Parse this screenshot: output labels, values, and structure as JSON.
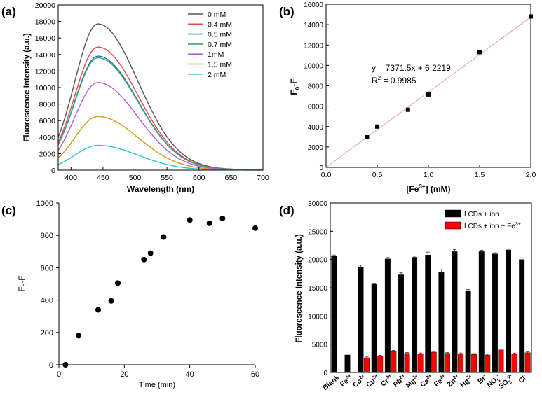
{
  "chart_data": [
    {
      "panel": "(a)",
      "type": "line",
      "xlabel": "Wavelength (nm)",
      "ylabel": "Fluorescence Intensity (a.u.)",
      "xlim": [
        380,
        700
      ],
      "ylim": [
        0,
        20000
      ],
      "xticks": [
        400,
        450,
        500,
        550,
        600,
        650,
        700
      ],
      "yticks": [
        0,
        2000,
        4000,
        6000,
        8000,
        10000,
        12000,
        14000,
        16000,
        18000,
        20000
      ],
      "legend_position": "top-right",
      "series": [
        {
          "name": "0 mM",
          "color": "#555555",
          "peak": 17700
        },
        {
          "name": "0.4 mM",
          "color": "#e8484a",
          "peak": 14900
        },
        {
          "name": "0.5 mM",
          "color": "#2f6fb8",
          "peak": 13800
        },
        {
          "name": "0.7 mM",
          "color": "#3aa66a",
          "peak": 13600
        },
        {
          "name": "1mM",
          "color": "#b15ee0",
          "peak": 10600
        },
        {
          "name": "1.5 mM",
          "color": "#d19a1a",
          "peak": 6500
        },
        {
          "name": "2 mM",
          "color": "#29c6cf",
          "peak": 3000
        }
      ],
      "peak_wavelength": 442
    },
    {
      "panel": "(b)",
      "type": "scatter",
      "xlabel": "[Fe3+] (mM)",
      "xlabel_base": "[Fe",
      "xlabel_sup": "3+",
      "xlabel_tail": "] (mM)",
      "ylabel": "F0-F",
      "ylabel_main": "F",
      "ylabel_sub": "0",
      "ylabel_tail": "-F",
      "xlim": [
        0,
        2.0
      ],
      "ylim": [
        0,
        16000
      ],
      "xticks": [
        "0.0",
        "0.5",
        "1.0",
        "1.5",
        "2.0"
      ],
      "yticks": [
        0,
        2000,
        4000,
        6000,
        8000,
        10000,
        12000,
        14000,
        16000
      ],
      "x": [
        0.4,
        0.5,
        0.8,
        1.0,
        1.5,
        2.0
      ],
      "y": [
        2950,
        4000,
        5650,
        7150,
        11300,
        14800
      ],
      "fit": {
        "slope": 7371.5,
        "intercept": 6.2219,
        "color": "#e8a09a"
      },
      "equation": "y = 7371.5x + 6.2219",
      "r2_label": "R",
      "r2_sup": "2",
      "r2_value": " = 0.9985"
    },
    {
      "panel": "(c)",
      "type": "scatter",
      "xlabel": "Time (min)",
      "ylabel": "F0-F",
      "ylabel_main": "F",
      "ylabel_sub": "0",
      "ylabel_tail": "-F",
      "xlim": [
        0,
        60
      ],
      "ylim": [
        0,
        1000
      ],
      "xticks": [
        0,
        20,
        40,
        60
      ],
      "yticks": [
        0,
        200,
        400,
        600,
        800,
        1000
      ],
      "x": [
        2,
        6,
        12,
        16,
        18,
        26,
        28,
        32,
        40,
        46,
        50,
        60
      ],
      "y": [
        0,
        180,
        340,
        395,
        505,
        650,
        690,
        790,
        895,
        875,
        905,
        845
      ]
    },
    {
      "panel": "(d)",
      "type": "bar",
      "ylabel": "Fluorescence Intensity (a.u.)",
      "ylim": [
        0,
        30000
      ],
      "yticks": [
        0,
        5000,
        10000,
        15000,
        20000,
        25000,
        30000
      ],
      "legend_position": "top-right",
      "categories": [
        {
          "base": "Blank",
          "sup": "",
          "sub": ""
        },
        {
          "base": "Fe",
          "sup": "3+",
          "sub": ""
        },
        {
          "base": "Co",
          "sup": "2+",
          "sub": ""
        },
        {
          "base": "Cu",
          "sup": "2+",
          "sub": ""
        },
        {
          "base": "Cr",
          "sup": "3+",
          "sub": ""
        },
        {
          "base": "Pb",
          "sup": "2+",
          "sub": ""
        },
        {
          "base": "Mg",
          "sup": "2+",
          "sub": ""
        },
        {
          "base": "Ca",
          "sup": "2+",
          "sub": ""
        },
        {
          "base": "Fe",
          "sup": "2+",
          "sub": ""
        },
        {
          "base": "Zn",
          "sup": "2+",
          "sub": ""
        },
        {
          "base": "Hg",
          "sup": "2+",
          "sub": ""
        },
        {
          "base": "Br",
          "sup": "-",
          "sub": ""
        },
        {
          "base": "NO",
          "sup": "-",
          "sub": "3"
        },
        {
          "base": "SO",
          "sup": "2-",
          "sub": "3"
        },
        {
          "base": "Cl",
          "sup": "-",
          "sub": ""
        }
      ],
      "series": [
        {
          "name": "LCDs + ion",
          "color": "#000000",
          "values": [
            20600,
            3100,
            18700,
            15600,
            20100,
            17300,
            20400,
            20800,
            17800,
            21400,
            14500,
            21400,
            21000,
            21700,
            20000
          ],
          "errors": [
            200,
            0,
            300,
            200,
            250,
            350,
            200,
            500,
            400,
            350,
            200,
            250,
            200,
            200,
            300
          ]
        },
        {
          "name": "LCDs + ion + Fe3+",
          "name_base": "LCDs + ion + Fe",
          "name_sup": "3+",
          "color": "#ff0000",
          "values": [
            null,
            null,
            2600,
            2900,
            3700,
            3400,
            3300,
            3600,
            3400,
            3300,
            3200,
            3100,
            4000,
            3300,
            3500
          ],
          "errors": [
            0,
            0,
            150,
            150,
            200,
            150,
            150,
            150,
            150,
            150,
            150,
            150,
            150,
            150,
            150
          ]
        }
      ]
    }
  ]
}
